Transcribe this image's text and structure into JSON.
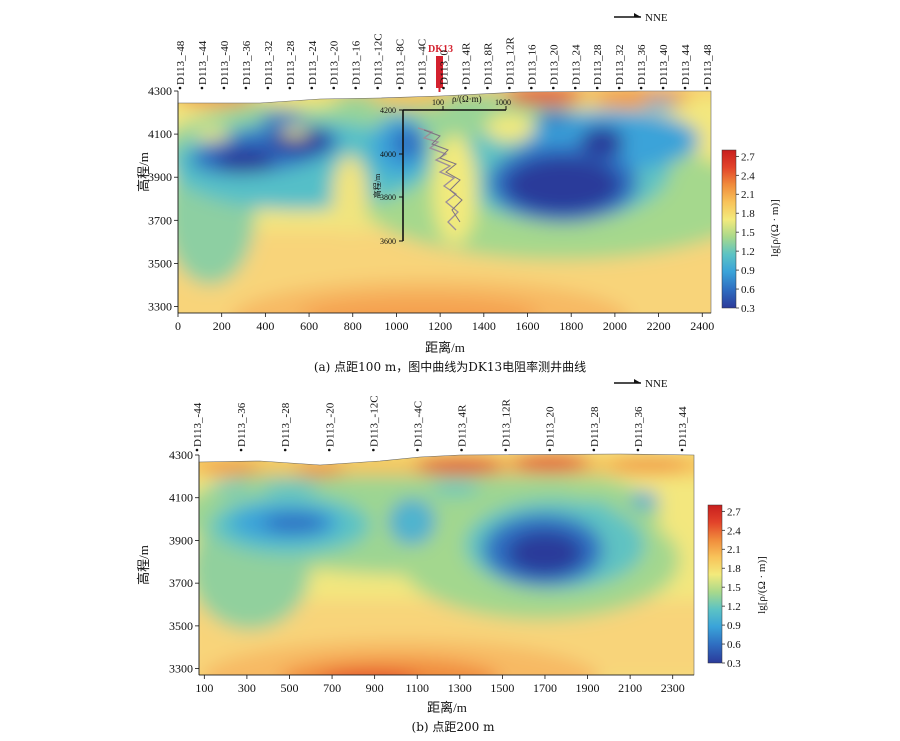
{
  "panels": [
    {
      "id": "a",
      "caption": "(a) 点距100 m，图中曲线为DK13电阻率测井曲线",
      "direction_label": "NNE",
      "ylabel": "高程/m",
      "xlabel": "距离/m",
      "yticks": [
        "4300",
        "4100",
        "3900",
        "3700",
        "3500",
        "3300"
      ],
      "xticks": [
        "0",
        "200",
        "400",
        "600",
        "800",
        "1000",
        "1200",
        "1400",
        "1600",
        "1800",
        "2000",
        "2200",
        "2400"
      ],
      "stations": [
        "D113_-48",
        "D113_-44",
        "D113_-40",
        "D113_-36",
        "D113_-32",
        "D113_-28",
        "D113_-24",
        "D113_-20",
        "D113_-16",
        "D113_-12C",
        "D113_-8C",
        "D113_-4C",
        "D113_0",
        "D113_4R",
        "D113_8R",
        "D113_12R",
        "D113_16",
        "D113_20",
        "D113_24",
        "D113_28",
        "D113_32",
        "D113_36",
        "D113_40",
        "D113_44",
        "D113_48"
      ],
      "well_label": "DK13",
      "colorbar_label": "lg[ρ/(Ω · m)]",
      "colorbar_ticks": [
        "2.7",
        "2.4",
        "2.1",
        "1.8",
        "1.5",
        "1.2",
        "0.9",
        "0.6",
        "0.3"
      ],
      "inset": {
        "rho_label": "ρ/(Ω·m)",
        "rho_ticks": [
          "100",
          "1000"
        ],
        "elev_label": "高程/m",
        "elev_ticks": [
          "4200",
          "4000",
          "3800",
          "3600"
        ]
      }
    },
    {
      "id": "b",
      "caption": "(b) 点距200 m",
      "direction_label": "NNE",
      "ylabel": "高程/m",
      "xlabel": "距离/m",
      "yticks": [
        "4300",
        "4100",
        "3900",
        "3700",
        "3500",
        "3300"
      ],
      "xticks": [
        "100",
        "300",
        "500",
        "700",
        "900",
        "1100",
        "1300",
        "1500",
        "1700",
        "1900",
        "2100",
        "2300"
      ],
      "stations": [
        "D113_-44",
        "D113_-36",
        "D113_-28",
        "D113_-20",
        "D113_-12C",
        "D113_-4C",
        "D113_4R",
        "D113_12R",
        "D113_20",
        "D113_28",
        "D113_36",
        "D113_44"
      ],
      "colorbar_label": "lg[ρ/(Ω · m)]",
      "colorbar_ticks": [
        "2.7",
        "2.4",
        "2.1",
        "1.8",
        "1.5",
        "1.2",
        "0.9",
        "0.6",
        "0.3"
      ]
    }
  ],
  "colors": {
    "scale": [
      "#2b3a9a",
      "#2f6fc2",
      "#3aa3d9",
      "#5cc3c4",
      "#a9d98b",
      "#f3ea7c",
      "#f8c35a",
      "#f08c3c",
      "#e2432a",
      "#c81e1e"
    ]
  },
  "chart_data": [
    {
      "type": "heatmap",
      "title": "",
      "xlabel": "距离/m",
      "ylabel": "高程/m",
      "xlim": [
        0,
        2440
      ],
      "ylim": [
        3270,
        4300
      ],
      "colorbar": {
        "label": "lg[ρ/(Ω · m)]",
        "range": [
          0.3,
          2.8
        ]
      },
      "features": [
        {
          "x": 550,
          "y": 4000,
          "value": 0.9
        },
        {
          "x": 1050,
          "y": 4050,
          "value": 0.9
        },
        {
          "x": 1800,
          "y": 3870,
          "value": 0.6
        },
        {
          "x": 1900,
          "y": 4000,
          "value": 0.9
        },
        {
          "x": 1350,
          "y": 3900,
          "value": 1.8
        },
        {
          "x": 1200,
          "y": 3300,
          "value": 2.1
        }
      ]
    },
    {
      "type": "heatmap",
      "title": "",
      "xlabel": "距离/m",
      "ylabel": "高程/m",
      "xlim": [
        100,
        2400
      ],
      "ylim": [
        3270,
        4300
      ],
      "colorbar": {
        "label": "lg[ρ/(Ω · m)]",
        "range": [
          0.3,
          2.8
        ]
      },
      "features": [
        {
          "x": 550,
          "y": 3960,
          "value": 0.9
        },
        {
          "x": 1000,
          "y": 3980,
          "value": 1.2
        },
        {
          "x": 1720,
          "y": 3850,
          "value": 0.6
        },
        {
          "x": 1100,
          "y": 3320,
          "value": 2.4
        }
      ]
    }
  ]
}
